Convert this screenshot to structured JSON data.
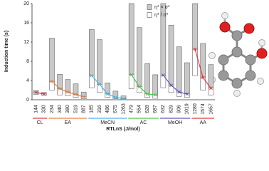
{
  "chart_data": {
    "type": "range_bar",
    "ylabel": "Induction time (s)",
    "xlabel": "RTLnS (J/mol)",
    "ylim": [
      0,
      20
    ],
    "yticks": [
      0,
      4,
      8,
      12,
      16,
      20
    ],
    "legend": [
      {
        "name": "η* × σ*",
        "color": "#c8c8c8"
      },
      {
        "name": "η* / σ*",
        "color": "#ffffff"
      }
    ],
    "groups": [
      {
        "name": "CL",
        "color": "#e0393e",
        "categories": [
          "144",
          "330"
        ],
        "measured": [
          1.5,
          1.2
        ],
        "upper": [
          1.9,
          1.5
        ],
        "lower": [
          1.1,
          0.9
        ]
      },
      {
        "name": "EA",
        "color": "#ef7d3a",
        "categories": [
          "234",
          "340",
          "380",
          "519",
          "887"
        ],
        "measured": [
          3.8,
          2.3,
          1.6,
          1.1,
          0.6
        ],
        "upper": [
          12.8,
          5.3,
          4.2,
          3.3,
          1.6
        ],
        "lower": [
          2.0,
          1.0,
          0.8,
          0.5,
          0.2
        ]
      },
      {
        "name": "MeCN",
        "color": "#4bb3e6",
        "categories": [
          "185",
          "316",
          "486",
          "675",
          "1263"
        ],
        "measured": [
          5.0,
          3.2,
          1.2,
          0.5,
          0.2
        ],
        "upper": [
          14.6,
          12.5,
          3.5,
          1.8,
          0.8
        ],
        "lower": [
          2.5,
          1.5,
          0.5,
          0.2,
          0.05
        ]
      },
      {
        "name": "AC",
        "color": "#4cc84a",
        "categories": [
          "479",
          "554",
          "628",
          "687"
        ],
        "measured": [
          5.2,
          2.7,
          1.2,
          1.0
        ],
        "upper": [
          20,
          15,
          7.5,
          5.2
        ],
        "lower": [
          2.3,
          1.5,
          0.5,
          0.3
        ]
      },
      {
        "name": "MeOH",
        "color": "#6a4fc2",
        "categories": [
          "632",
          "829",
          "906",
          "1019"
        ],
        "measured": [
          5.1,
          3.0,
          1.6,
          1.2
        ],
        "upper": [
          20,
          15.5,
          11,
          7.7
        ],
        "lower": [
          2.5,
          1.5,
          0.7,
          0.5
        ]
      },
      {
        "name": "AA",
        "color": "#e0393e",
        "categories": [
          "1280",
          "1574",
          "1657"
        ],
        "measured": [
          10.5,
          4.6,
          2.4
        ],
        "upper": [
          20,
          11.7,
          7.3
        ],
        "lower": [
          5.0,
          2.0,
          1.0
        ]
      }
    ]
  }
}
